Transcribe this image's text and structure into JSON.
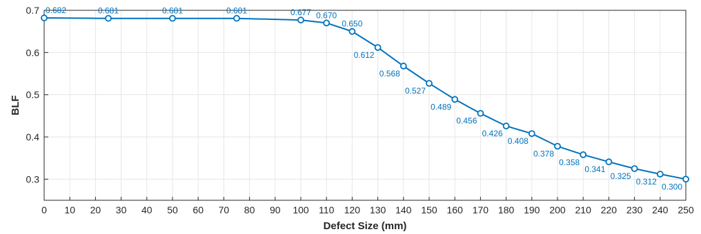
{
  "chart_data": {
    "type": "line",
    "xlabel": "Defect Size (mm)",
    "ylabel": "BLF",
    "xlim": [
      0,
      250
    ],
    "ylim": [
      0.25,
      0.7
    ],
    "xticks": [
      0,
      10,
      20,
      30,
      40,
      50,
      60,
      70,
      80,
      90,
      100,
      110,
      120,
      130,
      140,
      150,
      160,
      170,
      180,
      190,
      200,
      210,
      220,
      230,
      240,
      250
    ],
    "yticks": [
      0.3,
      0.4,
      0.5,
      0.6,
      0.7
    ],
    "xtick_labels": [
      "0",
      "10",
      "20",
      "30",
      "40",
      "50",
      "60",
      "70",
      "80",
      "90",
      "100",
      "110",
      "120",
      "130",
      "140",
      "150",
      "160",
      "170",
      "180",
      "190",
      "200",
      "210",
      "220",
      "230",
      "240",
      "250"
    ],
    "ytick_labels": [
      "0.3",
      "0.4",
      "0.5",
      "0.6",
      "0.7"
    ],
    "grid": true,
    "line_color": "#0072BD",
    "series": [
      {
        "x": [
          0,
          25,
          50,
          75,
          100,
          110,
          120,
          130,
          140,
          150,
          160,
          170,
          180,
          190,
          200,
          210,
          220,
          230,
          240,
          250
        ],
        "values": [
          0.682,
          0.681,
          0.681,
          0.681,
          0.677,
          0.67,
          0.65,
          0.612,
          0.568,
          0.527,
          0.489,
          0.456,
          0.426,
          0.408,
          0.378,
          0.358,
          0.341,
          0.325,
          0.312,
          0.3
        ],
        "labels": [
          "0.682",
          "0.681",
          "0.681",
          "0.681",
          "0.677",
          "0.670",
          "0.650",
          "0.612",
          "0.568",
          "0.527",
          "0.489",
          "0.456",
          "0.426",
          "0.408",
          "0.378",
          "0.358",
          "0.341",
          "0.325",
          "0.312",
          "0.300"
        ]
      }
    ]
  }
}
